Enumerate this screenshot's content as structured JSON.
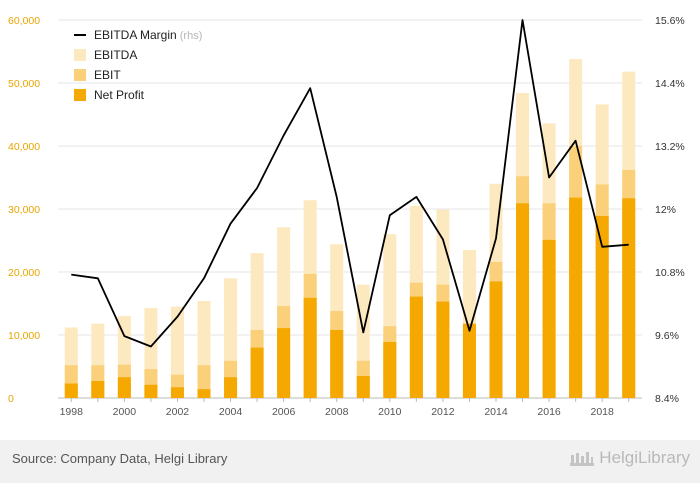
{
  "colors": {
    "net_profit": "#F5A800",
    "ebit": "#FAD17A",
    "ebitda": "#FDE9BF",
    "margin_line": "#000000",
    "left_axis_text": "#E8A500",
    "right_axis_text": "#333333",
    "grid": "#e6e6e6"
  },
  "chart_data": {
    "type": "bar",
    "x": [
      1998,
      1999,
      2000,
      2001,
      2002,
      2003,
      2004,
      2005,
      2006,
      2007,
      2008,
      2009,
      2010,
      2011,
      2012,
      2013,
      2014,
      2015,
      2016,
      2017,
      2018,
      2019
    ],
    "x_tick_labels": [
      "1998",
      "2000",
      "2002",
      "2004",
      "2006",
      "2008",
      "2010",
      "2012",
      "2014",
      "2016",
      "2018"
    ],
    "y_left_ticks": [
      "0",
      "10,000",
      "20,000",
      "30,000",
      "40,000",
      "50,000",
      "60,000"
    ],
    "y_left_lim": [
      0,
      60000
    ],
    "y_right_ticks": [
      "8.4%",
      "9.6%",
      "10.8%",
      "12%",
      "13.2%",
      "14.4%",
      "15.6%"
    ],
    "y_right_lim": [
      8.4,
      15.6
    ],
    "series": [
      {
        "name": "EBITDA",
        "role": "bar-back",
        "values": [
          11200,
          11800,
          13000,
          14300,
          14500,
          15400,
          19000,
          23000,
          27100,
          31400,
          24400,
          18000,
          26000,
          30500,
          29900,
          23500,
          34000,
          48400,
          43600,
          53800,
          46600,
          51800
        ]
      },
      {
        "name": "EBIT",
        "role": "bar-mid",
        "values": [
          5200,
          5200,
          5300,
          4600,
          3700,
          5200,
          5900,
          10800,
          14600,
          19700,
          13800,
          5900,
          11400,
          18300,
          18000,
          11500,
          21600,
          35200,
          30900,
          40000,
          33900,
          36200
        ]
      },
      {
        "name": "Net Profit",
        "role": "bar-front",
        "values": [
          2300,
          2700,
          3300,
          2100,
          1700,
          1400,
          3300,
          8000,
          11100,
          15900,
          10800,
          3500,
          8900,
          16100,
          15300,
          11800,
          18500,
          30900,
          25100,
          31800,
          28900,
          31700
        ]
      },
      {
        "name": "EBITDA Margin",
        "role": "line-rhs",
        "values": [
          10.75,
          10.68,
          9.58,
          9.38,
          9.95,
          10.68,
          11.72,
          12.4,
          13.4,
          14.3,
          12.23,
          9.65,
          11.88,
          12.23,
          11.42,
          9.68,
          11.44,
          15.6,
          12.6,
          13.3,
          11.28,
          11.32
        ]
      }
    ],
    "legend": [
      {
        "label": "EBITDA Margin",
        "suffix": "(rhs)",
        "kind": "line"
      },
      {
        "label": "EBITDA",
        "kind": "box"
      },
      {
        "label": "EBIT",
        "kind": "box"
      },
      {
        "label": "Net Profit",
        "kind": "box"
      }
    ],
    "legend_position": "top-left",
    "grid": true
  },
  "footer": {
    "source": "Source: Company Data, Helgi Library",
    "brand": "HelgiLibrary"
  }
}
